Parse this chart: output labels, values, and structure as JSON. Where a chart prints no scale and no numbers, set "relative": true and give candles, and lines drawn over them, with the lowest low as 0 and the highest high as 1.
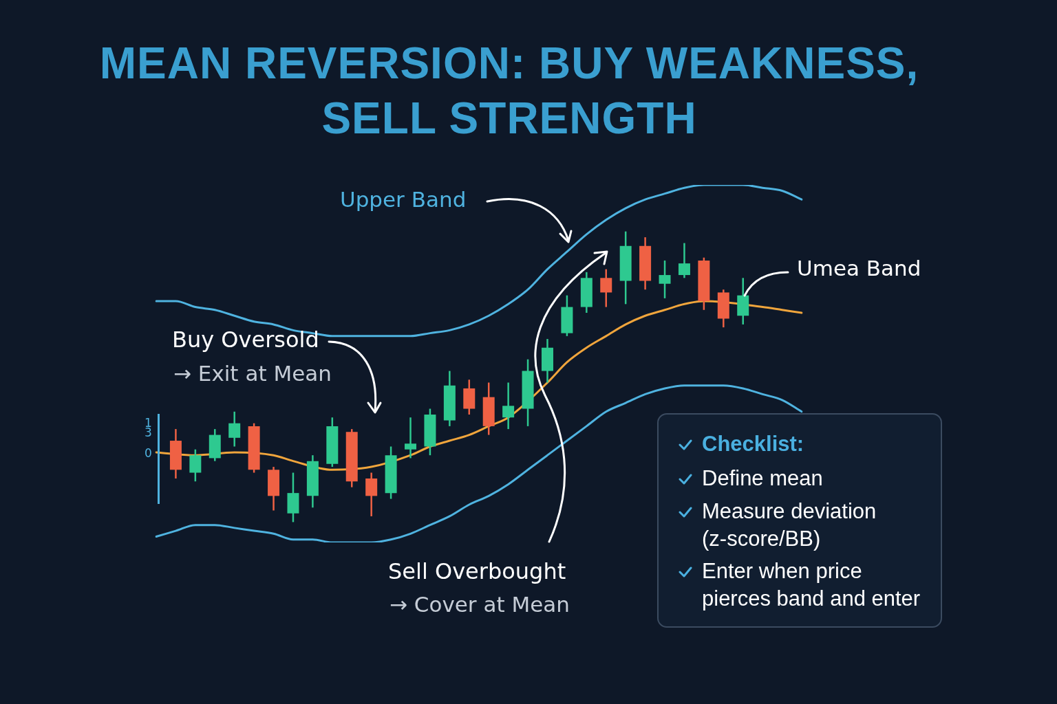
{
  "chart_data": {
    "type": "candlestick",
    "title": "MEAN REVERSION: BUY WEAKNESS, SELL STRENGTH",
    "relative": true,
    "marker": "none",
    "categories": [
      null,
      null,
      null,
      null,
      null,
      null,
      null,
      null,
      null,
      null,
      null,
      null,
      null,
      null,
      null,
      null,
      null,
      null,
      null,
      null,
      null,
      null,
      null,
      null,
      null,
      null,
      null,
      null,
      null,
      null,
      null,
      null,
      null,
      null
    ],
    "ohlc": [
      null,
      [
        0.28,
        0.32,
        0.15,
        0.18
      ],
      [
        0.17,
        0.25,
        0.14,
        0.23
      ],
      [
        0.22,
        0.32,
        0.21,
        0.3
      ],
      [
        0.29,
        0.38,
        0.26,
        0.34
      ],
      [
        0.33,
        0.34,
        0.17,
        0.18
      ],
      [
        0.18,
        0.19,
        0.04,
        0.09
      ],
      [
        0.03,
        0.17,
        0,
        0.1
      ],
      [
        0.09,
        0.23,
        0.05,
        0.21
      ],
      [
        0.2,
        0.36,
        0.19,
        0.33
      ],
      [
        0.31,
        0.32,
        0.12,
        0.14
      ],
      [
        0.15,
        0.17,
        0.02,
        0.09
      ],
      [
        0.1,
        0.26,
        0.08,
        0.23
      ],
      [
        0.25,
        0.36,
        0.22,
        0.27
      ],
      [
        0.26,
        0.39,
        0.23,
        0.37
      ],
      [
        0.35,
        0.52,
        0.33,
        0.47
      ],
      [
        0.46,
        0.49,
        0.37,
        0.39
      ],
      [
        0.43,
        0.48,
        0.3,
        0.33
      ],
      [
        0.36,
        0.48,
        0.32,
        0.4
      ],
      [
        0.39,
        0.56,
        0.33,
        0.52
      ],
      [
        0.52,
        0.63,
        0.48,
        0.6
      ],
      [
        0.65,
        0.78,
        0.64,
        0.74
      ],
      [
        0.74,
        0.86,
        0.72,
        0.84
      ],
      [
        0.84,
        0.87,
        0.74,
        0.79
      ],
      [
        0.83,
        1,
        0.75,
        0.95
      ],
      [
        0.95,
        0.98,
        0.8,
        0.83
      ],
      [
        0.82,
        0.9,
        0.77,
        0.85
      ],
      [
        0.85,
        0.96,
        0.84,
        0.89
      ],
      [
        0.9,
        0.91,
        0.73,
        0.76
      ],
      [
        0.79,
        0.8,
        0.67,
        0.7
      ],
      [
        0.71,
        0.84,
        0.68,
        0.78
      ],
      null,
      null,
      null
    ],
    "colors": [
      null,
      "#ef6144",
      "#2ec990",
      "#2ec990",
      "#2ec990",
      "#ef6144",
      "#ef6144",
      "#2ec990",
      "#2ec990",
      "#2ec990",
      "#ef6144",
      "#ef6144",
      "#2ec990",
      "#2ec990",
      "#2ec990",
      "#2ec990",
      "#ef6144",
      "#ef6144",
      "#2ec990",
      "#2ec990",
      "#2ec990",
      "#2ec990",
      "#2ec990",
      "#ef6144",
      "#2ec990",
      "#ef6144",
      "#2ec990",
      "#2ec990",
      "#ef6144",
      "#ef6144",
      "#2ec990",
      null,
      null,
      null
    ],
    "series": [
      {
        "name": "Upper Band",
        "type": "line",
        "color": "#4fb3e0",
        "values": [
          0.76,
          0.76,
          0.74,
          0.73,
          0.71,
          0.69,
          0.68,
          0.66,
          0.65,
          0.64,
          0.64,
          0.64,
          0.64,
          0.64,
          0.65,
          0.66,
          0.68,
          0.71,
          0.75,
          0.8,
          0.87,
          0.93,
          0.99,
          1.04,
          1.08,
          1.11,
          1.13,
          1.15,
          1.16,
          1.16,
          1.16,
          1.15,
          1.14,
          1.11
        ]
      },
      {
        "name": "Umea Band",
        "type": "line",
        "color": "#f0a53c",
        "values": [
          0.24,
          null,
          0.23,
          null,
          0.24,
          null,
          0.23,
          0.21,
          null,
          0.18,
          null,
          0.19,
          null,
          0.23,
          0.26,
          0.28,
          0.3,
          0.33,
          0.36,
          null,
          0.48,
          0.55,
          0.6,
          0.64,
          0.68,
          0.71,
          0.73,
          0.75,
          0.76,
          null,
          null,
          0.74,
          0.73,
          0.72
        ]
      },
      {
        "type": "line",
        "color": "#4fb3e0",
        "values": [
          -0.05,
          -0.03,
          -0.01,
          -0.01,
          -0.02,
          -0.03,
          -0.04,
          -0.06,
          -0.06,
          -0.07,
          -0.07,
          -0.07,
          -0.06,
          -0.04,
          -0.01,
          0.02,
          0.06,
          0.09,
          0.13,
          0.18,
          0.23,
          0.28,
          0.33,
          0.38,
          0.41,
          0.44,
          0.46,
          0.47,
          0.47,
          0.47,
          0.46,
          0.44,
          0.42,
          0.38
        ]
      }
    ],
    "annotations": [
      "Buy Oversold",
      "→ Exit at Mean",
      "Sell Overbought",
      "→ Cover at Mean",
      "Checklist:",
      "Define mean",
      "Measure deviation (z-score/BB)",
      "Enter when price pierces band and enter",
      "1",
      "3",
      "0"
    ]
  }
}
